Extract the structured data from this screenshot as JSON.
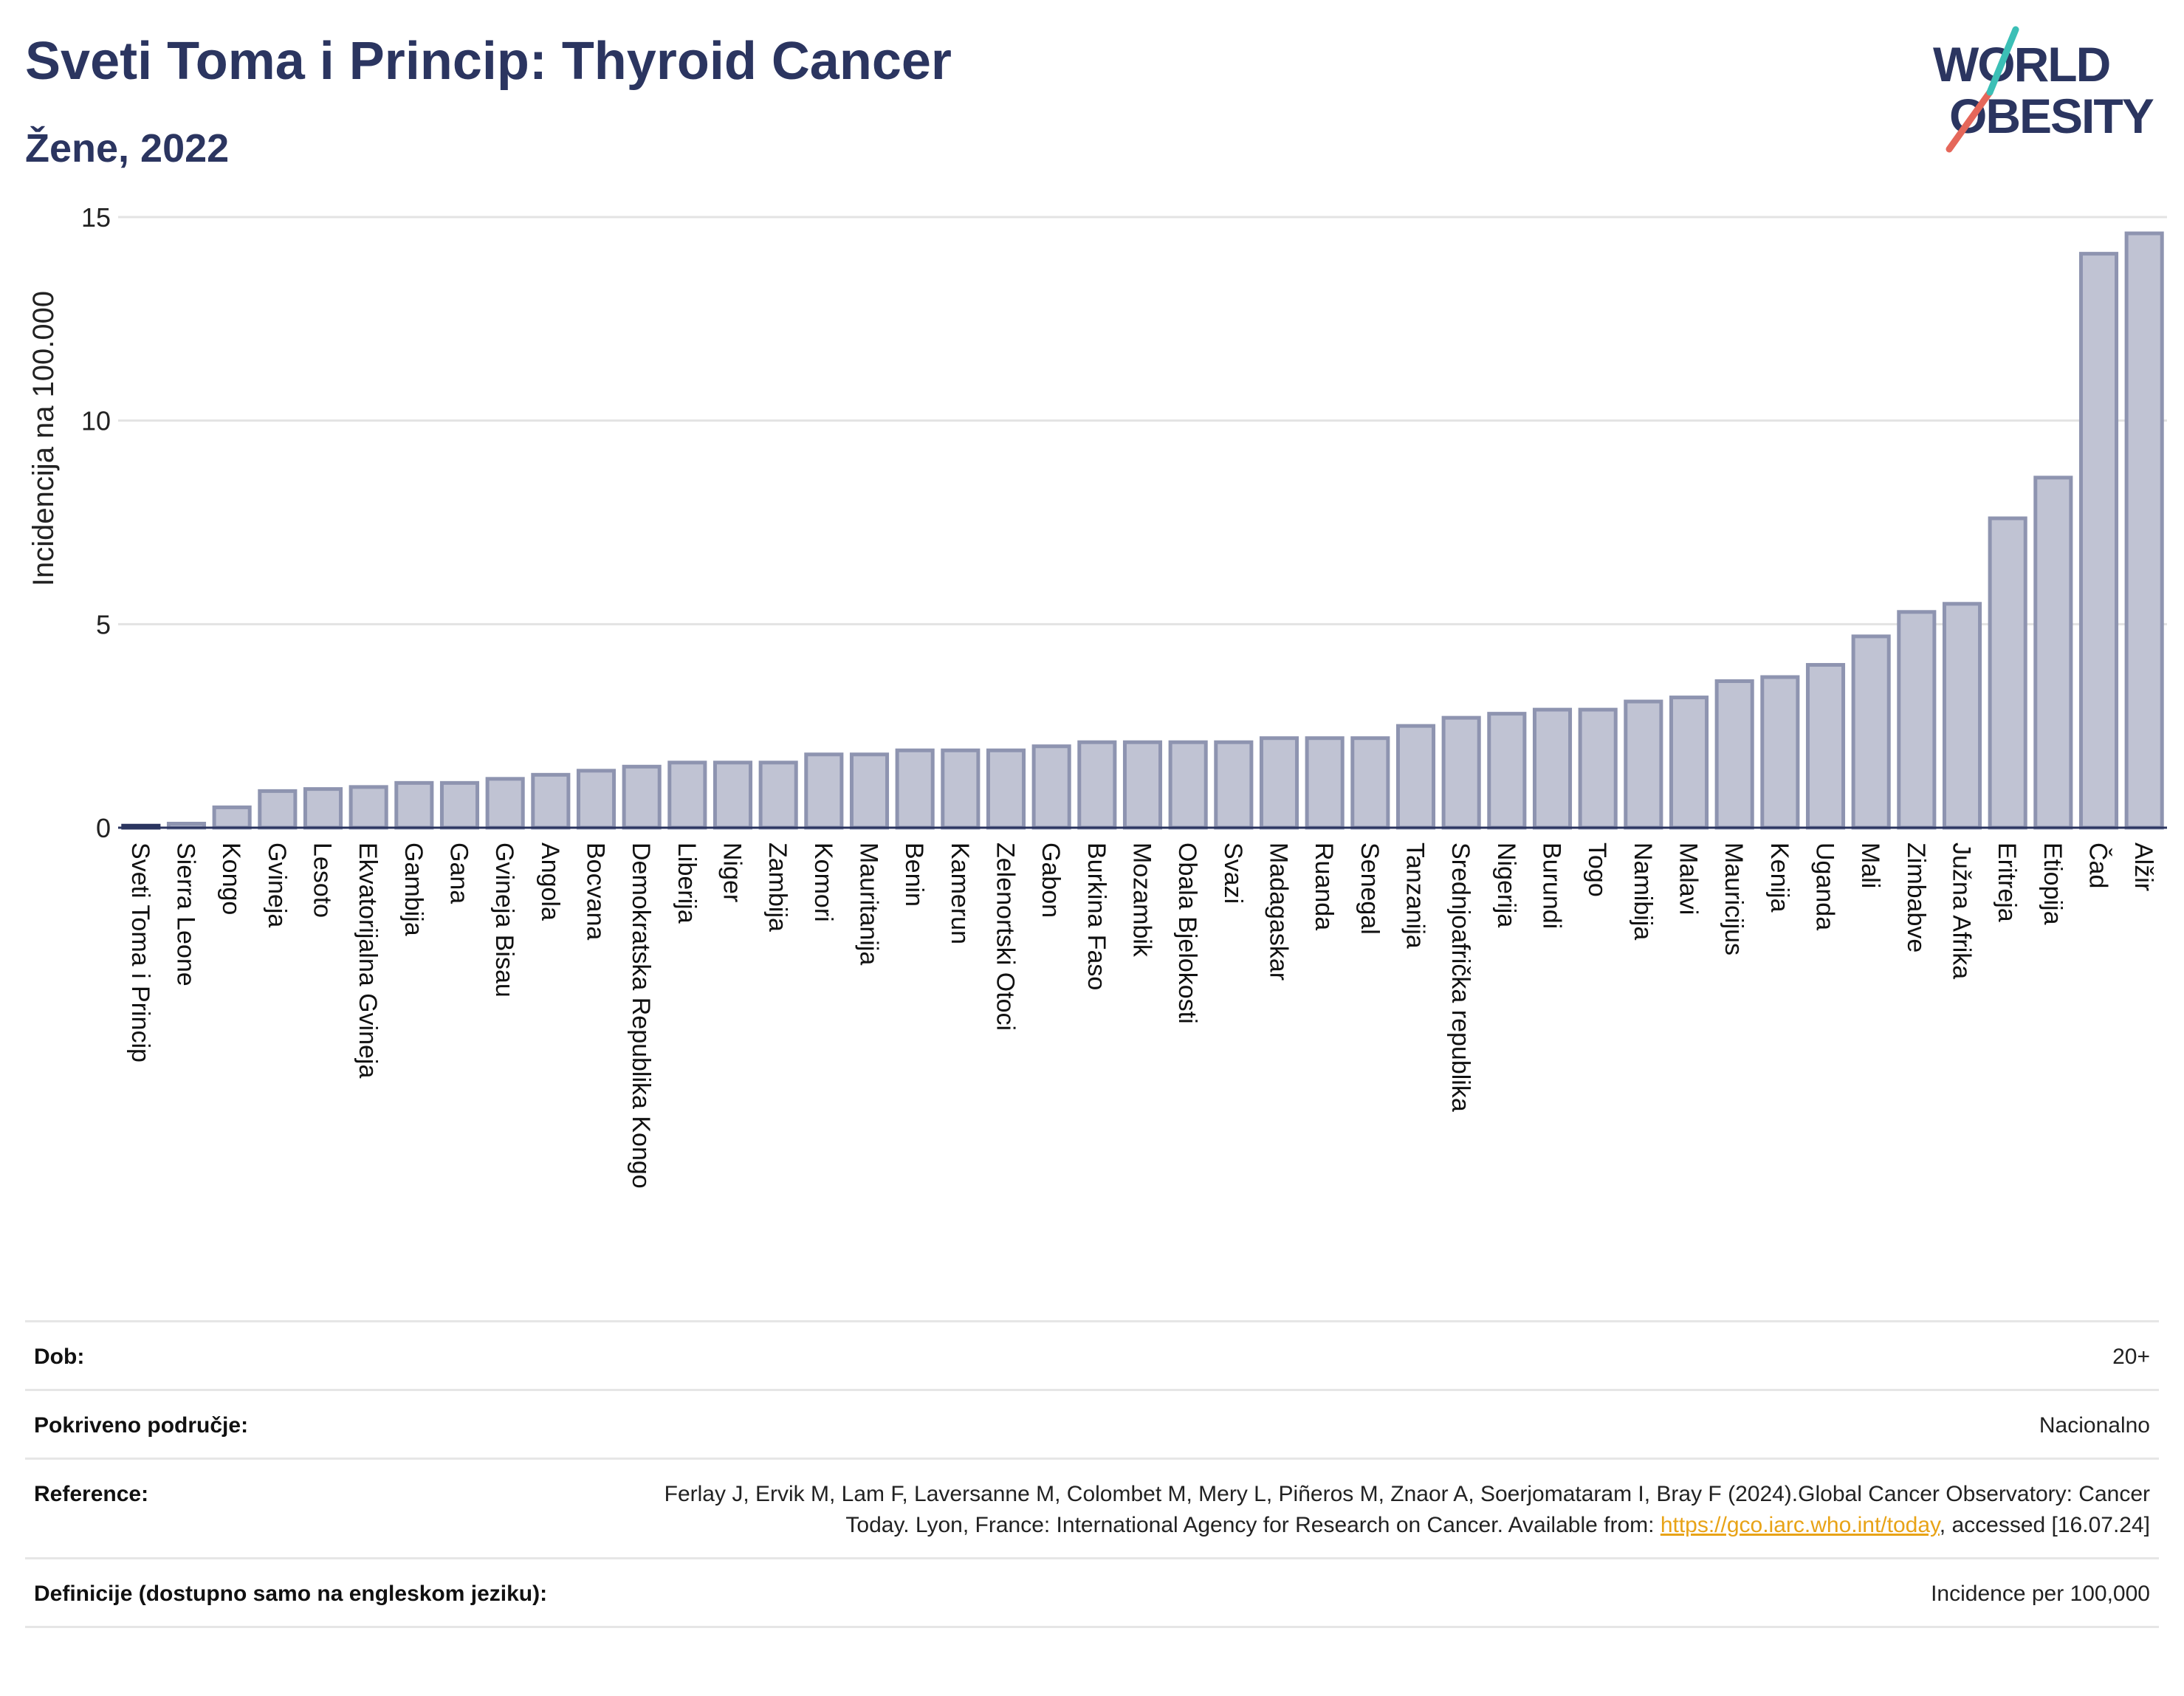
{
  "header": {
    "title": "Sveti Toma i Princip: Thyroid Cancer",
    "subtitle": "Žene, 2022"
  },
  "logo": {
    "line1": "WORLD",
    "line2": "OBESITY"
  },
  "colors": {
    "bar_fill": "#c0c3d3",
    "bar_stroke": "#8e94b0",
    "highlight": "#2b3560",
    "title": "#2b3560",
    "link": "#e8a317"
  },
  "chart_data": {
    "type": "bar",
    "ylabel": "Incidencija na 100.000",
    "ylim": [
      0,
      15
    ],
    "yticks": [
      0,
      5,
      10,
      15
    ],
    "grid": true,
    "highlight_category": "Sveti Toma i Princip",
    "categories": [
      "Sveti Toma i Princip",
      "Sierra Leone",
      "Kongo",
      "Gvineja",
      "Lesoto",
      "Ekvatorijalna Gvineja",
      "Gambija",
      "Gana",
      "Gvineja Bisau",
      "Angola",
      "Bocvana",
      "Demokratska Republika Kongo",
      "Liberija",
      "Niger",
      "Zambija",
      "Komori",
      "Mauritanija",
      "Benin",
      "Kamerun",
      "Zelenortski Otoci",
      "Gabon",
      "Burkina Faso",
      "Mozambik",
      "Obala Bjelokosti",
      "Svazi",
      "Madagaskar",
      "Ruanda",
      "Senegal",
      "Tanzanija",
      "Srednjoafrička republika",
      "Nigerija",
      "Burundi",
      "Togo",
      "Namibija",
      "Malavi",
      "Mauricijus",
      "Kenija",
      "Uganda",
      "Mali",
      "Zimbabve",
      "Južna Afrika",
      "Eritreja",
      "Etiopija",
      "Čad",
      "Alžir"
    ],
    "values": [
      0.05,
      0.1,
      0.5,
      0.9,
      0.95,
      1.0,
      1.1,
      1.1,
      1.2,
      1.3,
      1.4,
      1.5,
      1.6,
      1.6,
      1.6,
      1.8,
      1.8,
      1.9,
      1.9,
      1.9,
      2.0,
      2.1,
      2.1,
      2.1,
      2.1,
      2.2,
      2.2,
      2.2,
      2.5,
      2.7,
      2.8,
      2.9,
      2.9,
      3.1,
      3.2,
      3.6,
      3.7,
      4.0,
      4.7,
      5.3,
      5.5,
      7.6,
      8.6,
      14.1,
      14.6
    ]
  },
  "meta": {
    "rows": [
      {
        "label": "Dob:",
        "value": "20+"
      },
      {
        "label": "Pokriveno područje:",
        "value": "Nacionalno"
      },
      {
        "label": "Reference:",
        "value_pre": "Ferlay J, Ervik M, Lam F, Laversanne M, Colombet M, Mery L, Piñeros M, Znaor A, Soerjomataram I, Bray F (2024).Global Cancer Observatory: Cancer Today. Lyon, France: International Agency for Research on Cancer. Available from: ",
        "link": "https://gco.iarc.who.int/today",
        "value_post": ", accessed [16.07.24]"
      },
      {
        "label": "Definicije (dostupno samo na engleskom jeziku):",
        "value": "Incidence per 100,000"
      }
    ]
  }
}
